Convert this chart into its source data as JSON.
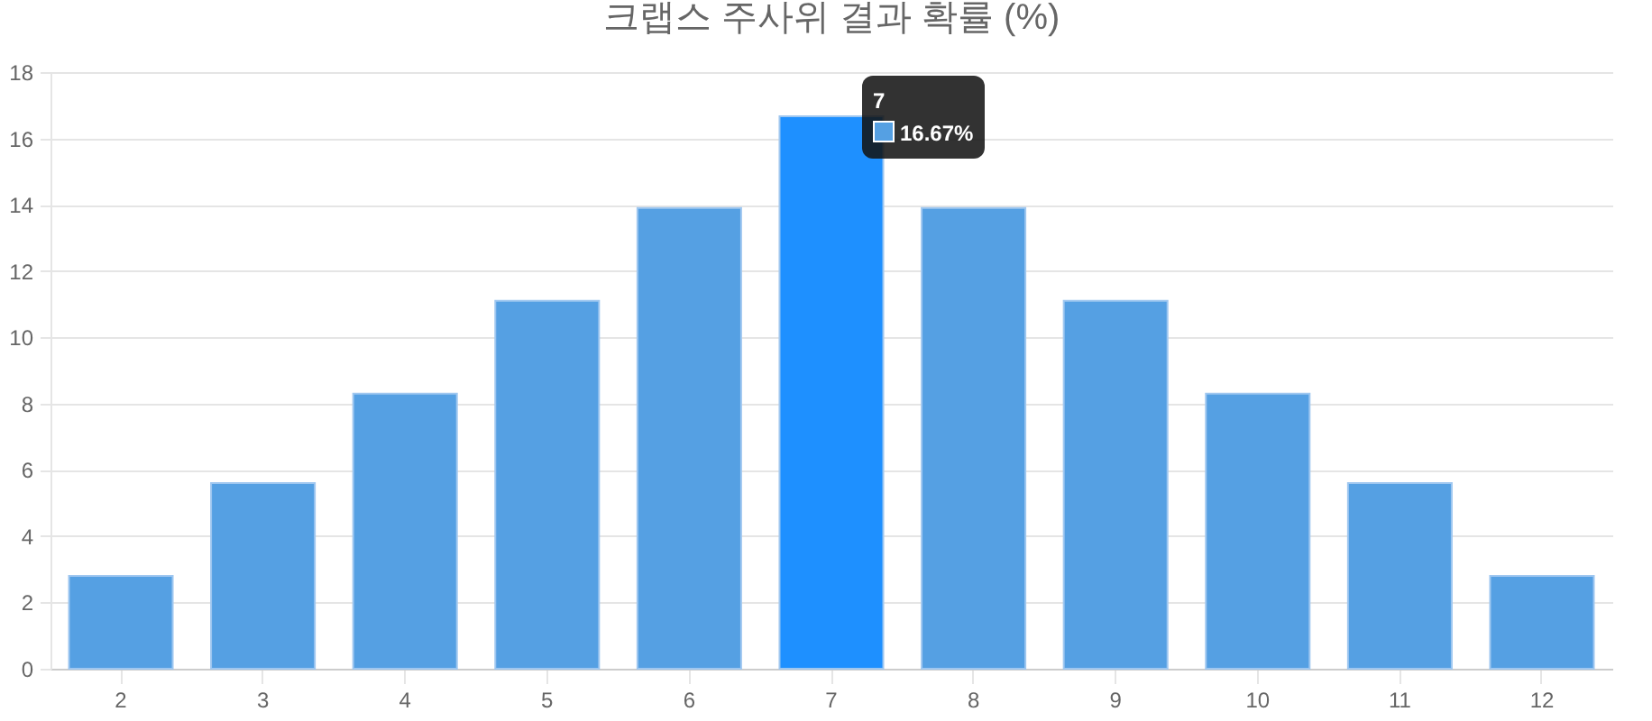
{
  "chart_data": {
    "type": "bar",
    "title": "크랩스 주사위 결과 확률 (%)",
    "categories": [
      "2",
      "3",
      "4",
      "5",
      "6",
      "7",
      "8",
      "9",
      "10",
      "11",
      "12"
    ],
    "values": [
      2.8,
      5.6,
      8.3,
      11.1,
      13.9,
      16.67,
      13.9,
      11.1,
      8.3,
      5.6,
      2.8
    ],
    "colors": [
      "#55a0e3",
      "#55a0e3",
      "#55a0e3",
      "#55a0e3",
      "#55a0e3",
      "#1e90ff",
      "#55a0e3",
      "#55a0e3",
      "#55a0e3",
      "#55a0e3",
      "#55a0e3"
    ],
    "ylim": [
      0,
      18
    ],
    "yticks": [
      0,
      2,
      4,
      6,
      8,
      10,
      12,
      14,
      16,
      18
    ],
    "grid": true,
    "annotations": [
      "7",
      "16.67%"
    ]
  }
}
